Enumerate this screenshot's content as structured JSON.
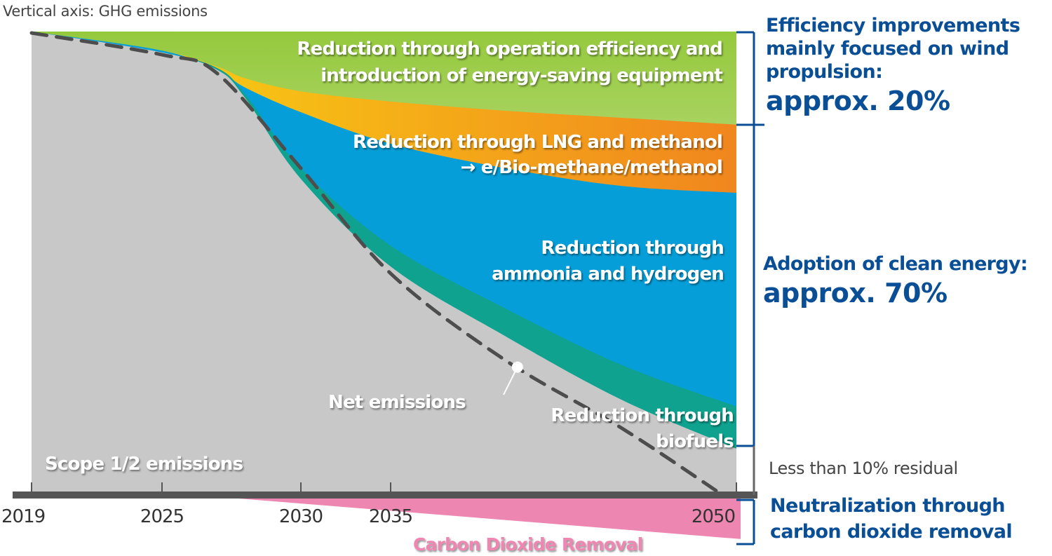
{
  "vertical_axis_label": "Vertical axis: GHG emissions",
  "right_annotations": {
    "efficiency": {
      "text_lines": [
        "Efficiency improvements",
        "mainly focused on wind",
        "propulsion:"
      ],
      "value": "approx. 20%"
    },
    "clean_energy": {
      "text_lines": [
        "Adoption of clean energy:"
      ],
      "value": "approx. 70%"
    },
    "residual": "Less than 10% residual",
    "neutralization": {
      "text_lines": [
        "Neutralization through",
        "carbon dioxide removal"
      ]
    }
  },
  "colors": {
    "scope": "#c8c8c8",
    "biofuels": "#0fa28f",
    "ammonia_hydrogen": "#069ed8",
    "lng_methanol_left": "#f8c614",
    "lng_methanol_right": "#f0861e",
    "efficiency_top": "#95c93d",
    "efficiency_bottom": "#f2f7e6",
    "cdr": "#ee86b2",
    "axis": "#555555",
    "net_line": "#4d4d4d",
    "bracket": "#0a4f96"
  },
  "chart_data": {
    "type": "area",
    "title": "",
    "ylabel": "GHG emissions",
    "xlabel": "",
    "x_ticks": [
      2019,
      2025,
      2030,
      2035,
      2050
    ],
    "x_tick_labels": [
      "2019",
      "2025",
      "2030",
      "2035",
      "2050"
    ],
    "xlim": [
      2019,
      2050
    ],
    "ylim": [
      -10,
      100
    ],
    "units": "index (2019 = 100)",
    "grid": false,
    "x": [
      2019,
      2025,
      2027,
      2028,
      2030,
      2035,
      2040,
      2045,
      2050
    ],
    "series": [
      {
        "name": "Scope 1/2 emissions",
        "key": "scope",
        "label_lines": [
          "Scope 1/2 emissions"
        ],
        "upper": [
          100,
          95.5,
          91.7,
          85.6,
          68.2,
          49.3,
          34.2,
          20.6,
          10.0
        ]
      },
      {
        "name": "Reduction through biofuels",
        "key": "biofuels",
        "label_lines": [
          "Reduction through",
          "biofuels"
        ],
        "upper": [
          100,
          95.5,
          92.1,
          86.4,
          70.5,
          53.8,
          40.2,
          28.1,
          19.1
        ]
      },
      {
        "name": "Reduction through ammonia and hydrogen",
        "key": "ammonia_hydrogen",
        "label_lines": [
          "Reduction through",
          "ammonia and hydrogen"
        ],
        "upper": [
          100,
          95.9,
          91.7,
          87.9,
          82.6,
          75.8,
          70.5,
          66.7,
          65.2
        ]
      },
      {
        "name": "Reduction through LNG and methanol → e/Bio-methane/methanol",
        "key": "lng_methanol",
        "label_lines": [
          "Reduction through LNG and methanol",
          "→ e/Bio-methane/methanol"
        ],
        "upper": [
          100,
          95.9,
          92.4,
          89.9,
          87.1,
          84.9,
          82.9,
          81.4,
          79.9
        ]
      },
      {
        "name": "Reduction through operation efficiency and introduction of energy-saving equipment",
        "key": "efficiency",
        "label_lines": [
          "Reduction through operation efficiency and",
          "introduction of energy-saving equipment"
        ],
        "upper": [
          100,
          100,
          100,
          100,
          100,
          100,
          100,
          100,
          100
        ]
      }
    ],
    "net_emissions": {
      "name": "Net emissions",
      "x": [
        2019,
        2025,
        2027,
        2030,
        2035,
        2040,
        2045,
        2049.4
      ],
      "y": [
        99.7,
        95.0,
        90.9,
        70.5,
        47.8,
        29.0,
        14.5,
        0
      ]
    },
    "carbon_dioxide_removal": {
      "name": "Carbon Dioxide Removal",
      "x": [
        2026.2,
        2050
      ],
      "y": [
        0,
        -9.5
      ]
    }
  }
}
